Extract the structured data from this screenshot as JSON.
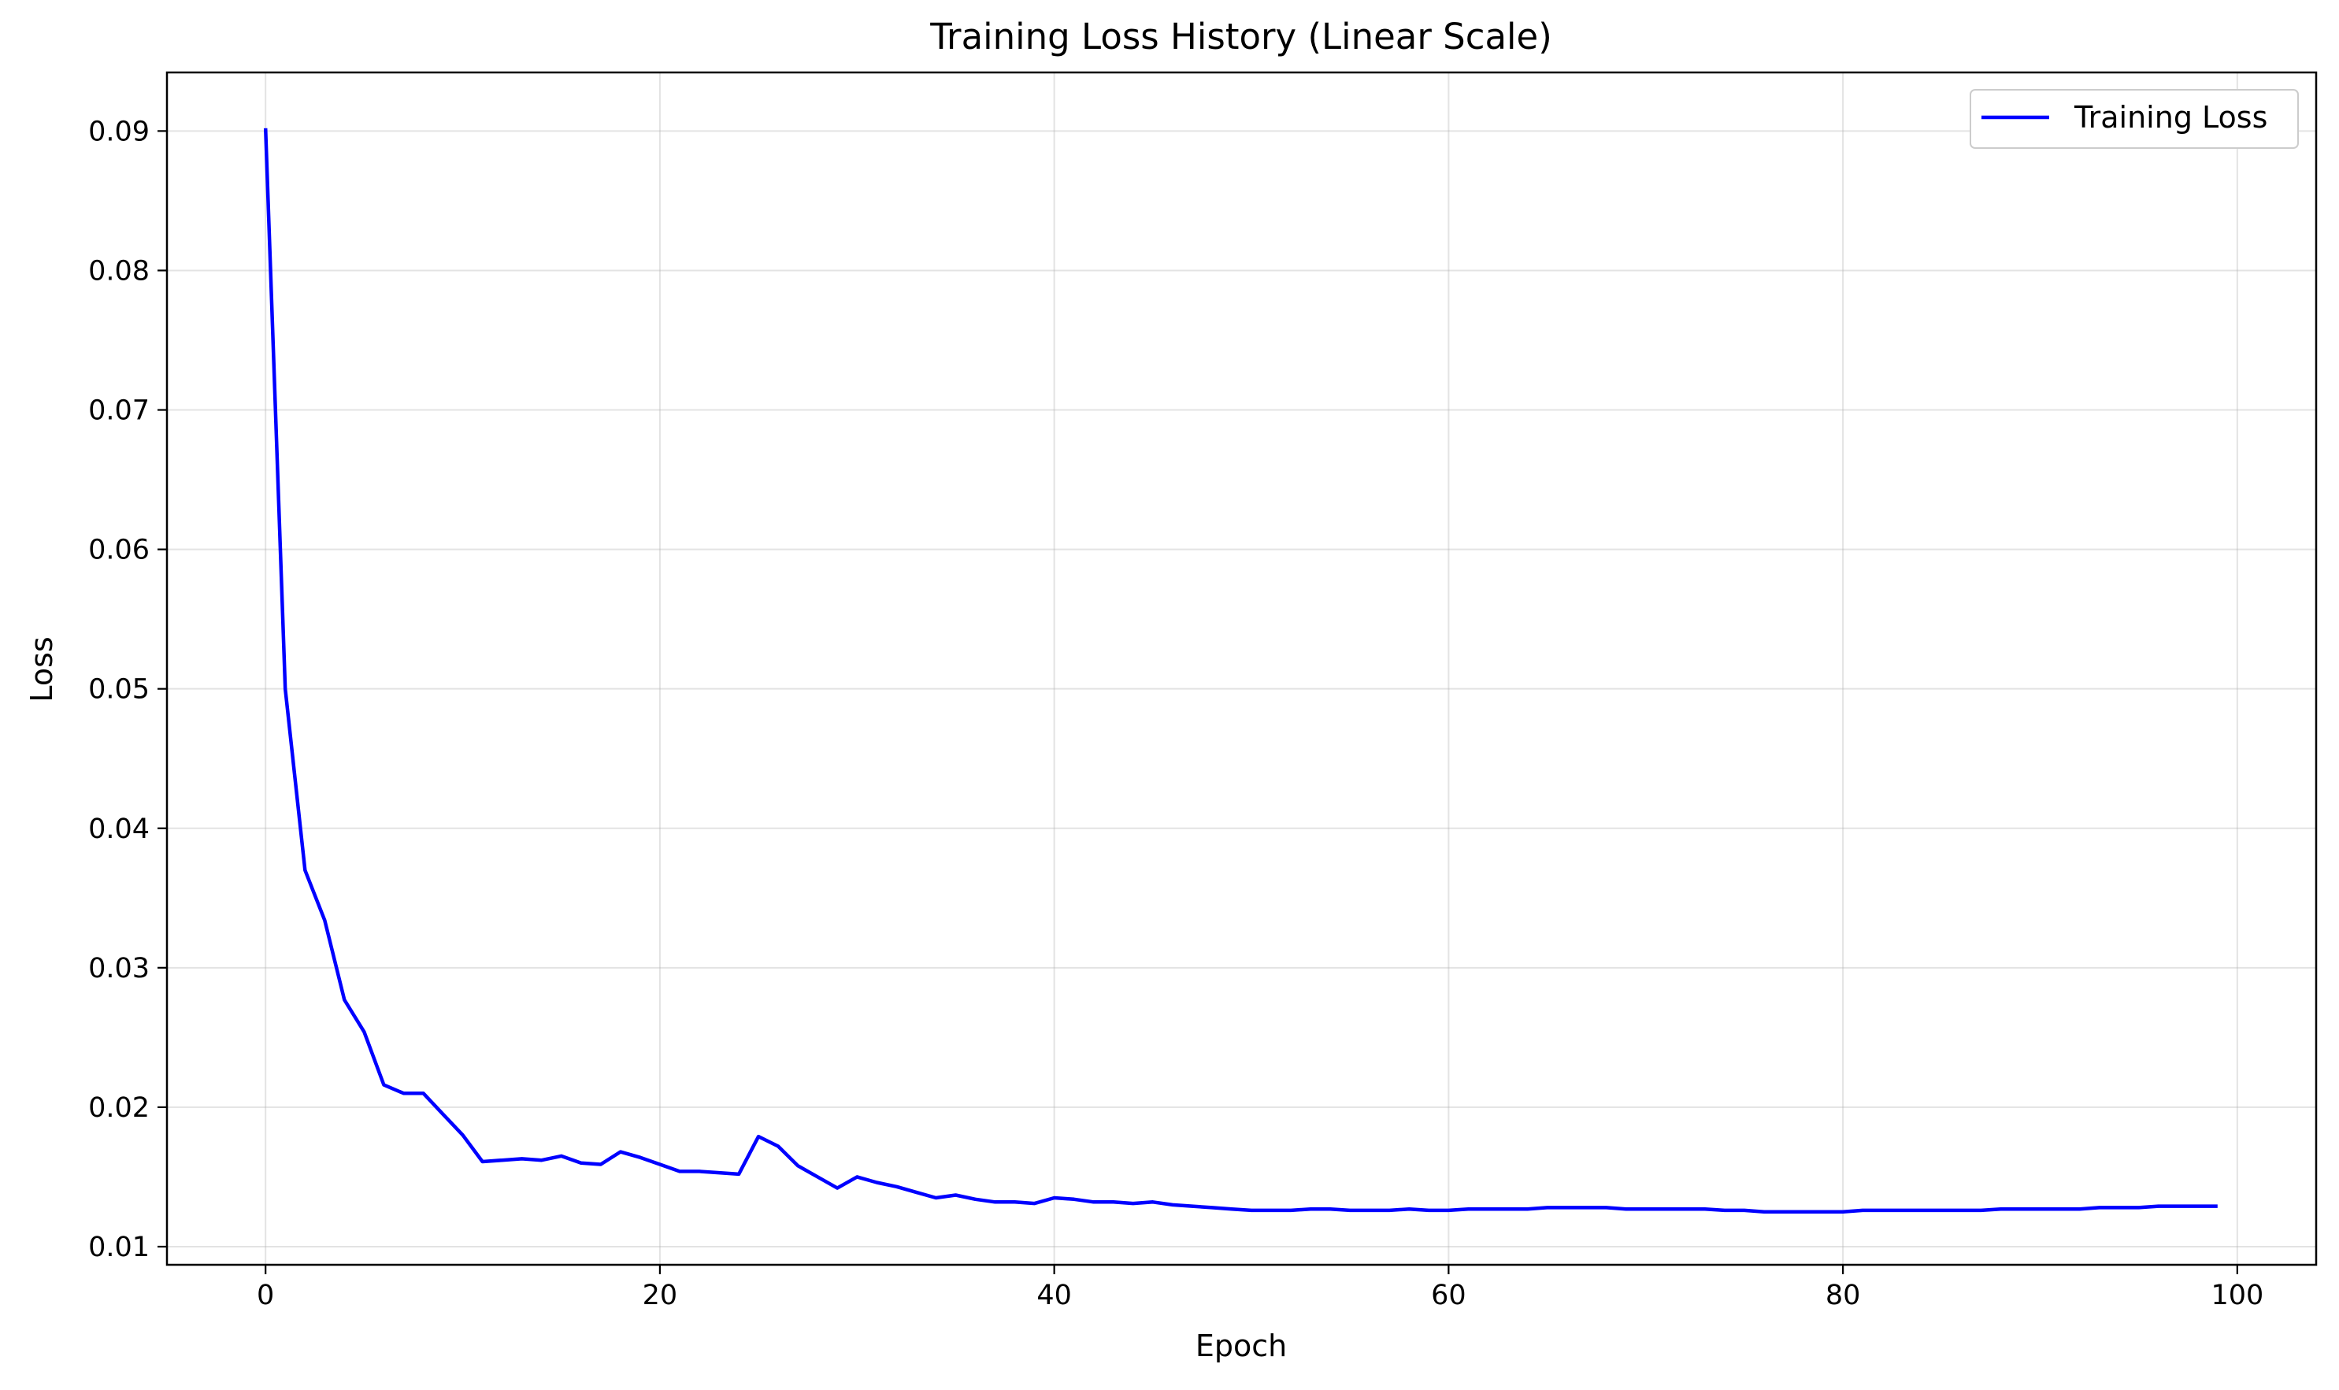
{
  "chart_data": {
    "type": "line",
    "title": "Training Loss History (Linear Scale)",
    "xlabel": "Epoch",
    "ylabel": "Loss",
    "xlim": [
      -5,
      104
    ],
    "ylim": [
      0.0087,
      0.0942
    ],
    "x_ticks": [
      0,
      20,
      40,
      60,
      80,
      100
    ],
    "x_tick_labels": [
      "0",
      "20",
      "40",
      "60",
      "80",
      "100"
    ],
    "y_ticks": [
      0.01,
      0.02,
      0.03,
      0.04,
      0.05,
      0.06,
      0.07,
      0.08,
      0.09
    ],
    "y_tick_labels": [
      "0.01",
      "0.02",
      "0.03",
      "0.04",
      "0.05",
      "0.06",
      "0.07",
      "0.08",
      "0.09"
    ],
    "grid": true,
    "legend_position": "top-right",
    "series": [
      {
        "name": "Training Loss",
        "color": "#0000ff",
        "x": [
          0,
          1,
          2,
          3,
          4,
          5,
          6,
          7,
          8,
          9,
          10,
          11,
          12,
          13,
          14,
          15,
          16,
          17,
          18,
          19,
          20,
          21,
          22,
          23,
          24,
          25,
          26,
          27,
          28,
          29,
          30,
          31,
          32,
          33,
          34,
          35,
          36,
          37,
          38,
          39,
          40,
          41,
          42,
          43,
          44,
          45,
          46,
          47,
          48,
          49,
          50,
          51,
          52,
          53,
          54,
          55,
          56,
          57,
          58,
          59,
          60,
          61,
          62,
          63,
          64,
          65,
          66,
          67,
          68,
          69,
          70,
          71,
          72,
          73,
          74,
          75,
          76,
          77,
          78,
          79,
          80,
          81,
          82,
          83,
          84,
          85,
          86,
          87,
          88,
          89,
          90,
          91,
          92,
          93,
          94,
          95,
          96,
          97,
          98,
          99
        ],
        "values": [
          0.0902,
          0.05,
          0.037,
          0.0334,
          0.0277,
          0.0254,
          0.0216,
          0.021,
          0.021,
          0.0195,
          0.018,
          0.0161,
          0.0162,
          0.0163,
          0.0162,
          0.0165,
          0.016,
          0.0159,
          0.0168,
          0.0164,
          0.0159,
          0.0154,
          0.0154,
          0.0153,
          0.0152,
          0.0179,
          0.0172,
          0.0158,
          0.015,
          0.0142,
          0.015,
          0.0146,
          0.0143,
          0.0139,
          0.0135,
          0.0137,
          0.0134,
          0.0132,
          0.0132,
          0.0131,
          0.0135,
          0.0134,
          0.0132,
          0.0132,
          0.0131,
          0.0132,
          0.013,
          0.0129,
          0.0128,
          0.0127,
          0.0126,
          0.0126,
          0.0126,
          0.0127,
          0.0127,
          0.0126,
          0.0126,
          0.0126,
          0.0127,
          0.0126,
          0.0126,
          0.0127,
          0.0127,
          0.0127,
          0.0127,
          0.0128,
          0.0128,
          0.0128,
          0.0128,
          0.0127,
          0.0127,
          0.0127,
          0.0127,
          0.0127,
          0.0126,
          0.0126,
          0.0125,
          0.0125,
          0.0125,
          0.0125,
          0.0125,
          0.0126,
          0.0126,
          0.0126,
          0.0126,
          0.0126,
          0.0126,
          0.0126,
          0.0127,
          0.0127,
          0.0127,
          0.0127,
          0.0127,
          0.0128,
          0.0128,
          0.0128,
          0.0129,
          0.0129,
          0.0129,
          0.0129
        ]
      }
    ]
  }
}
